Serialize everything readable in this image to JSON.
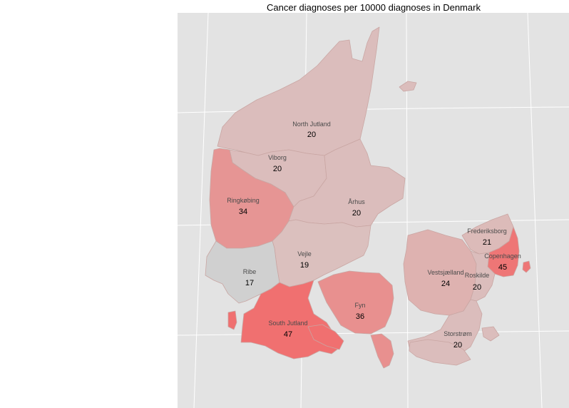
{
  "title": "Cancer diagnoses per 10000 diagnoses in Denmark",
  "colors": {
    "panel_background": "#e3e3e3",
    "grid": "#ffffff",
    "no_data_region": "#d0d0d0",
    "scale_low": "#d9c6c4",
    "scale_high": "#f07070",
    "border": "#c9a6a3"
  },
  "map_data": {
    "type": "choropleth",
    "metric": "Cancer diagnoses per 10000 diagnoses",
    "regions": [
      {
        "id": "north-jutland",
        "name": "North Jutland",
        "value": 20
      },
      {
        "id": "viborg",
        "name": "Viborg",
        "value": 20
      },
      {
        "id": "ringkobing",
        "name": "Ringkøbing",
        "value": 34
      },
      {
        "id": "arhus",
        "name": "Århus",
        "value": 20
      },
      {
        "id": "vejle",
        "name": "Vejle",
        "value": 19
      },
      {
        "id": "ribe",
        "name": "Ribe",
        "value": 17
      },
      {
        "id": "south-jutland",
        "name": "South Jutland",
        "value": 47
      },
      {
        "id": "fyn",
        "name": "Fyn",
        "value": 36
      },
      {
        "id": "frederiksborg",
        "name": "Frederiksborg",
        "value": 21
      },
      {
        "id": "copenhagen",
        "name": "Copenhagen",
        "value": 45
      },
      {
        "id": "vestsjaelland",
        "name": "Vestsjælland",
        "value": 24
      },
      {
        "id": "roskilde",
        "name": "Roskilde",
        "value": 20
      },
      {
        "id": "storstrom",
        "name": "Storstrøm",
        "value": 20
      }
    ]
  }
}
